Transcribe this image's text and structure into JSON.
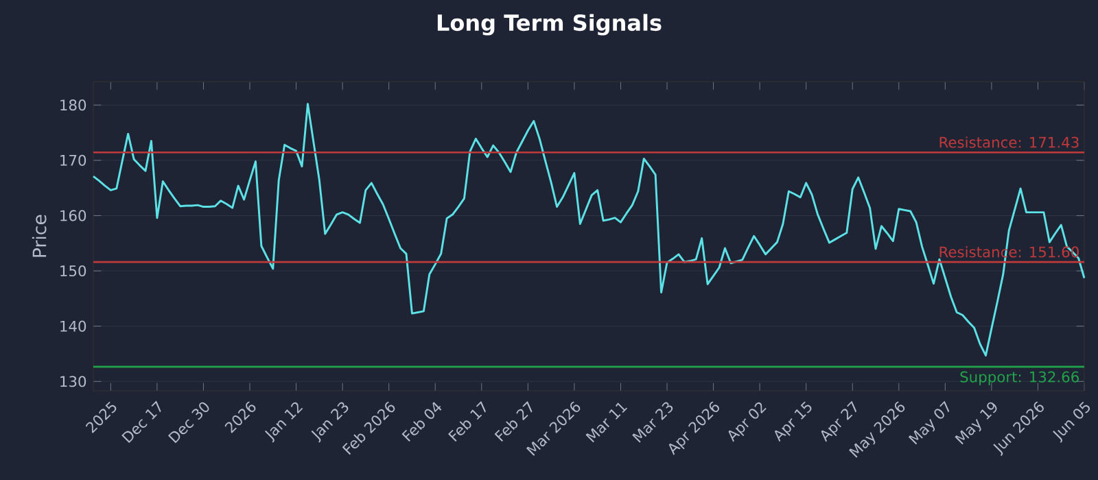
{
  "chart_data": {
    "type": "line",
    "title": "Long Term Signals",
    "ylabel": "Price",
    "categories": [
      null,
      null,
      null,
      "2025",
      null,
      null,
      null,
      null,
      null,
      null,
      null,
      "Dec 17",
      null,
      null,
      null,
      null,
      null,
      null,
      null,
      "Dec 30",
      null,
      null,
      null,
      null,
      null,
      null,
      null,
      "2026",
      null,
      null,
      null,
      null,
      null,
      null,
      null,
      "Jan 12",
      null,
      null,
      null,
      null,
      null,
      null,
      null,
      "Jan 23",
      null,
      null,
      null,
      null,
      null,
      null,
      null,
      "Feb 2026",
      null,
      null,
      null,
      null,
      null,
      null,
      null,
      "Feb 04",
      null,
      null,
      null,
      null,
      null,
      null,
      null,
      "Feb 17",
      null,
      null,
      null,
      null,
      null,
      null,
      null,
      "Feb 27",
      null,
      null,
      null,
      null,
      null,
      null,
      null,
      "Mar 2026",
      null,
      null,
      null,
      null,
      null,
      null,
      null,
      "Mar 11",
      null,
      null,
      null,
      null,
      null,
      null,
      null,
      "Mar 23",
      null,
      null,
      null,
      null,
      null,
      null,
      null,
      "Apr 2026",
      null,
      null,
      null,
      null,
      null,
      null,
      null,
      "Apr 02",
      null,
      null,
      null,
      null,
      null,
      null,
      null,
      "Apr 15",
      null,
      null,
      null,
      null,
      null,
      null,
      null,
      "Apr 27",
      null,
      null,
      null,
      null,
      null,
      null,
      null,
      "May 2026",
      null,
      null,
      null,
      null,
      null,
      null,
      null,
      "May 07",
      null,
      null,
      null,
      null,
      null,
      null,
      null,
      "May 19",
      null,
      null,
      null,
      null,
      null,
      null,
      null,
      "Jun 2026",
      null,
      null,
      null,
      null,
      null,
      null,
      null,
      "Jun 05"
    ],
    "series": [
      {
        "color": "#5ce1e6",
        "values": [
          167.1,
          166.3,
          165.4,
          164.6,
          164.9,
          169.9,
          174.8,
          170.2,
          169.1,
          168.1,
          173.5,
          159.6,
          166.2,
          164.6,
          163.1,
          161.7,
          161.8,
          161.8,
          161.9,
          161.6,
          161.6,
          161.7,
          162.7,
          162.1,
          161.4,
          165.4,
          162.9,
          166.4,
          169.8,
          154.5,
          152.4,
          150.4,
          166.4,
          172.8,
          172.2,
          171.7,
          168.9,
          180.2,
          173.3,
          166.4,
          156.7,
          158.4,
          160.2,
          160.6,
          160.2,
          159.4,
          158.7,
          164.6,
          165.9,
          163.9,
          162.0,
          159.4,
          156.7,
          154.1,
          153.1,
          142.3,
          142.5,
          142.7,
          149.4,
          151.2,
          153.1,
          159.5,
          160.2,
          161.6,
          163.1,
          171.6,
          173.9,
          172.2,
          170.6,
          172.7,
          171.4,
          169.7,
          167.9,
          171.4,
          173.4,
          175.4,
          177.1,
          173.9,
          169.9,
          166.0,
          161.6,
          163.3,
          165.5,
          167.7,
          158.5,
          161.1,
          163.7,
          164.6,
          159.1,
          159.3,
          159.6,
          158.8,
          160.4,
          161.9,
          164.4,
          170.3,
          168.9,
          167.4,
          146.1,
          151.5,
          152.2,
          153.0,
          151.6,
          151.8,
          152.1,
          155.9,
          147.6,
          149.1,
          150.6,
          154.1,
          151.4,
          151.7,
          152.0,
          154.2,
          156.3,
          154.7,
          153.0,
          154.1,
          155.2,
          158.5,
          164.4,
          163.9,
          163.3,
          165.9,
          163.8,
          160.2,
          157.6,
          155.1,
          155.7,
          156.3,
          156.9,
          164.8,
          166.9,
          164.2,
          161.4,
          154.0,
          158.1,
          156.8,
          155.4,
          161.2,
          161.0,
          160.8,
          158.8,
          154.4,
          151.1,
          147.7,
          152.1,
          148.7,
          145.3,
          142.5,
          142.0,
          140.8,
          139.7,
          136.8,
          134.7,
          139.6,
          144.4,
          149.4,
          157.3,
          161.1,
          164.9,
          160.6,
          160.6,
          160.6,
          160.6,
          155.2,
          156.8,
          158.3,
          154.4,
          153.4,
          152.3,
          148.7
        ]
      }
    ],
    "ylim": [
      128.3,
      184.2
    ],
    "yticks": [
      130,
      140,
      150,
      160,
      170,
      180
    ],
    "grid": "y",
    "ref_lines": [
      {
        "axis": "y",
        "value": 171.43,
        "label": "Resistance: 171.43",
        "color": "#c0393b"
      },
      {
        "axis": "y",
        "value": 151.6,
        "label": "Resistance: 151.60",
        "color": "#c0393b"
      },
      {
        "axis": "y",
        "value": 132.66,
        "label": "Support: 132.66",
        "color": "#22a34a"
      }
    ]
  }
}
